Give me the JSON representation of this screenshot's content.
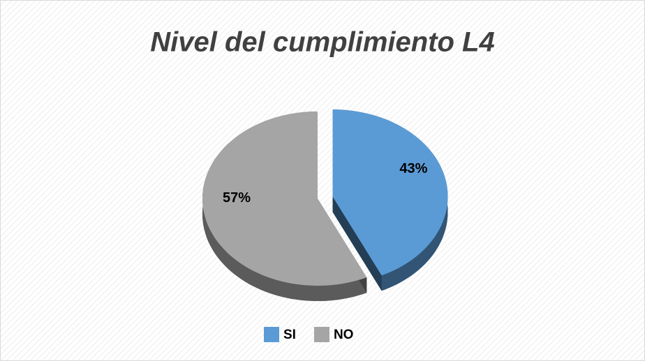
{
  "chart_data": {
    "type": "pie",
    "title": "Nivel del cumplimiento L4",
    "categories": [
      "SI",
      "NO"
    ],
    "values": [
      43,
      57
    ],
    "value_labels": [
      "43%",
      "57%"
    ],
    "colors": [
      "#5b9bd5",
      "#a5a5a5"
    ],
    "legend": "bottom"
  }
}
